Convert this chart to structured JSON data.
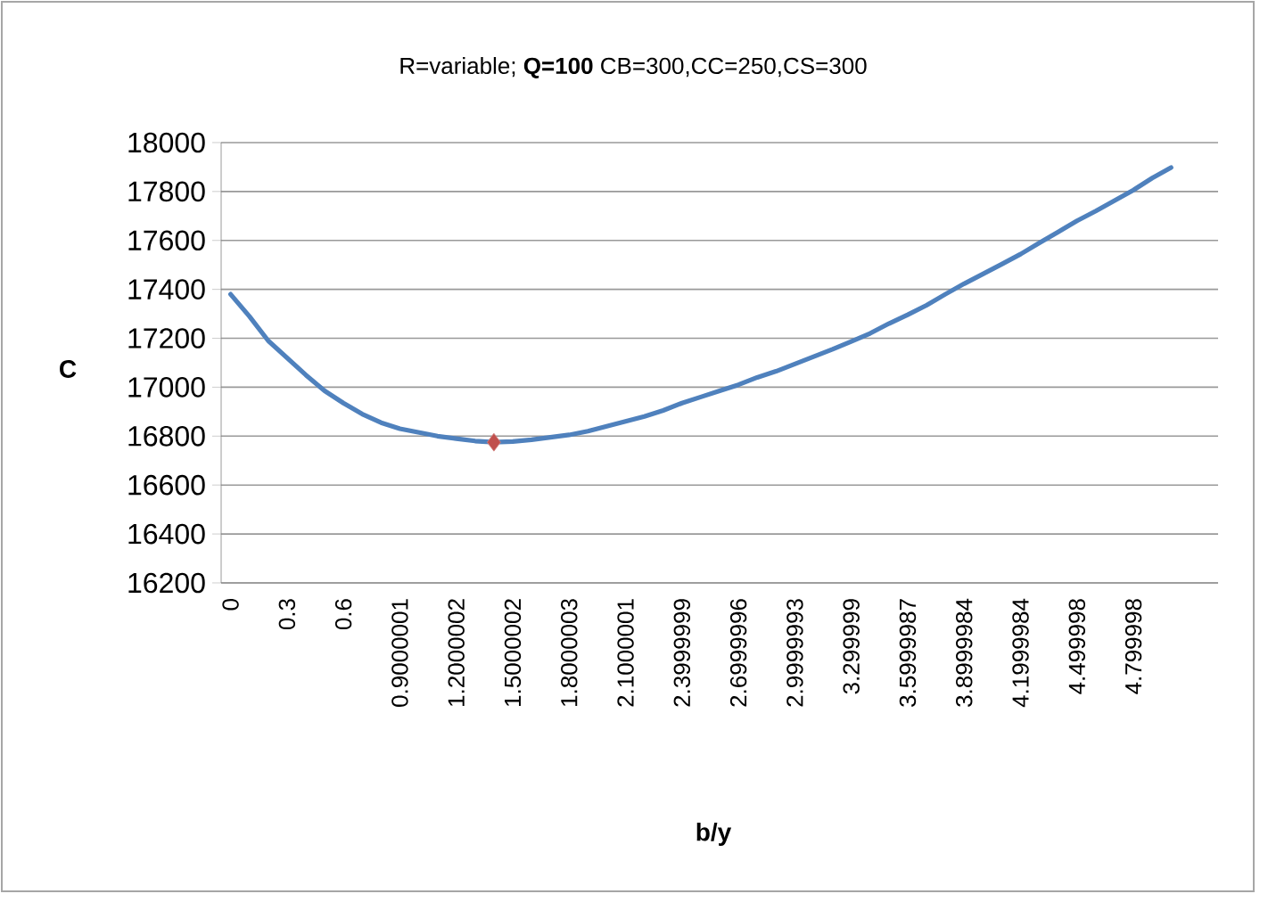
{
  "chart_data": {
    "type": "line",
    "title": "R=variable;  **Q=100** CB=300,CC=250,CS=300",
    "xlabel": "b/y",
    "ylabel": "C",
    "categories": [
      "0",
      null,
      null,
      "0.3",
      null,
      null,
      "0.6",
      null,
      null,
      "0.9000001",
      null,
      null,
      "1.2000002",
      null,
      null,
      "1.5000002",
      null,
      null,
      "1.8000003",
      null,
      null,
      "2.1000001",
      null,
      null,
      "2.3999999",
      null,
      null,
      "2.6999996",
      null,
      null,
      "2.9999993",
      null,
      null,
      "3.299999",
      null,
      null,
      "3.5999987",
      null,
      null,
      "3.8999984",
      null,
      null,
      "4.1999984",
      null,
      null,
      "4.499998",
      null,
      null,
      "4.799998",
      null,
      null,
      null,
      null
    ],
    "series": [
      {
        "color": "#4f81bd",
        "marker": "none",
        "line_style": "solid",
        "values": [
          17380,
          17290,
          17190,
          17120,
          17050,
          16985,
          16935,
          16890,
          16855,
          16830,
          16815,
          16800,
          16790,
          16780,
          16775,
          16778,
          16785,
          16795,
          16805,
          16820,
          16840,
          16860,
          16880,
          16905,
          16935,
          16960,
          16985,
          17010,
          17040,
          17065,
          17095,
          17125,
          17155,
          17187,
          17220,
          17260,
          17296,
          17335,
          17380,
          17423,
          17463,
          17503,
          17544,
          17590,
          17635,
          17680,
          17720,
          17763,
          17806,
          17855,
          17898,
          null,
          null
        ]
      },
      {
        "type": "scatter",
        "color": "#c0504d",
        "marker": "diamond",
        "values": [
          null,
          null,
          null,
          null,
          null,
          null,
          null,
          null,
          null,
          null,
          null,
          null,
          null,
          null,
          16775,
          null,
          null,
          null,
          null,
          null,
          null,
          null,
          null,
          null,
          null,
          null,
          null,
          null,
          null,
          null,
          null,
          null,
          null,
          null,
          null,
          null,
          null,
          null,
          null,
          null,
          null,
          null,
          null,
          null,
          null,
          null,
          null,
          null,
          null,
          null,
          null,
          null,
          null
        ]
      }
    ],
    "ylim": [
      16200,
      18000
    ],
    "yticks": [
      16200,
      16400,
      16600,
      16800,
      17000,
      17200,
      17400,
      17600,
      17800,
      18000
    ],
    "grid": "y"
  }
}
